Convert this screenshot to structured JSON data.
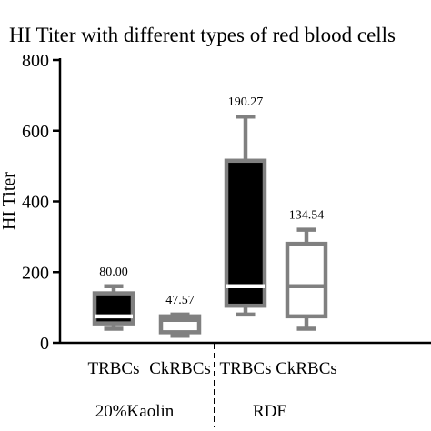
{
  "chart_data": {
    "type": "box",
    "title": "HI Titer with different types of red blood cells",
    "ylabel": "HI Titer",
    "xlabel": "",
    "ylim": [
      0,
      800
    ],
    "yticks": [
      0,
      200,
      400,
      600,
      800
    ],
    "grid": false,
    "groups": [
      {
        "label": "20%Kaolin",
        "categories": [
          "TRBCs",
          "CkRBCs"
        ]
      },
      {
        "label": "RDE",
        "categories": [
          "TRBCs",
          "CkRBCs"
        ]
      }
    ],
    "boxes": [
      {
        "category": "TRBCs",
        "group": "20%Kaolin",
        "min": 40,
        "q1": 55,
        "median": 75,
        "q3": 140,
        "max": 160,
        "label": "80.00",
        "fill": "#000000",
        "stroke": "#808080"
      },
      {
        "category": "CkRBCs",
        "group": "20%Kaolin",
        "min": 20,
        "q1": 30,
        "median": 65,
        "q3": 75,
        "max": 80,
        "label": "47.57",
        "fill": "#ffffff",
        "stroke": "#808080"
      },
      {
        "category": "TRBCs",
        "group": "RDE",
        "min": 80,
        "q1": 105,
        "median": 160,
        "q3": 515,
        "max": 640,
        "label": "190.27",
        "fill": "#000000",
        "stroke": "#808080"
      },
      {
        "category": "CkRBCs",
        "group": "RDE",
        "min": 40,
        "q1": 75,
        "median": 160,
        "q3": 280,
        "max": 320,
        "label": "134.54",
        "fill": "#ffffff",
        "stroke": "#808080"
      }
    ]
  }
}
